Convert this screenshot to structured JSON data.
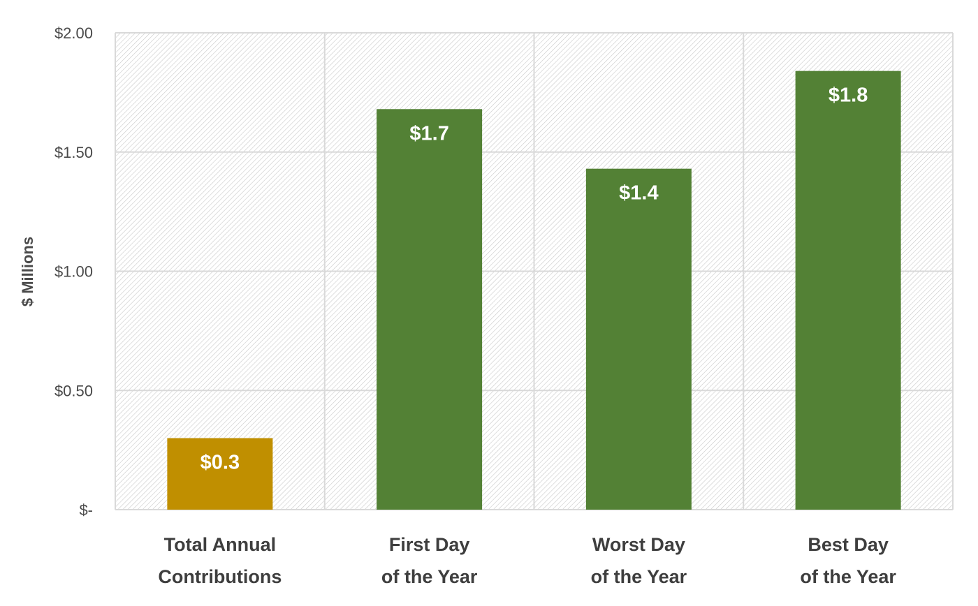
{
  "chart_data": {
    "type": "bar",
    "categories": [
      [
        "Total Annual",
        "Contributions"
      ],
      [
        "First Day",
        "of the Year"
      ],
      [
        "Worst Day",
        "of the Year"
      ],
      [
        "Best Day",
        "of the Year"
      ]
    ],
    "values": [
      0.3,
      1.68,
      1.43,
      1.84
    ],
    "data_labels": [
      "$0.3",
      "$1.7",
      "$1.4",
      "$1.8"
    ],
    "bar_colors": [
      "#c08f00",
      "#538135",
      "#538135",
      "#538135"
    ],
    "ylabel": "$ Millions",
    "ylim": [
      0,
      2.0
    ],
    "yticks": [
      0,
      0.5,
      1.0,
      1.5,
      2.0
    ],
    "ytick_labels": [
      "$-",
      "$0.50",
      "$1.00",
      "$1.50",
      "$2.00"
    ],
    "grid": true,
    "plot_background": "hatched light gray",
    "grid_color": "#d9d9d9",
    "hatch_color": "#c9c9c9"
  }
}
